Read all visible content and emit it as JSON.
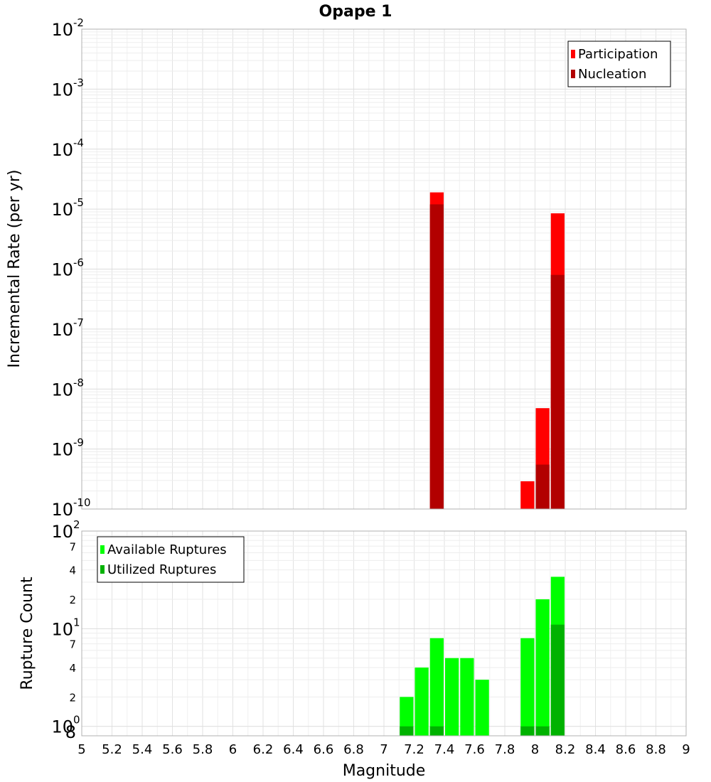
{
  "title": "Opape 1",
  "chart_data": [
    {
      "type": "bar",
      "panel": "top",
      "ylabel": "Incremental Rate (per yr)",
      "yscale": "log",
      "ylim": [
        1e-10,
        0.01
      ],
      "xlim": [
        5,
        9
      ],
      "y_ticks": [
        {
          "base": "10",
          "exp": "-2",
          "value": 0.01
        },
        {
          "base": "10",
          "exp": "-3",
          "value": 0.001
        },
        {
          "base": "10",
          "exp": "-4",
          "value": 0.0001
        },
        {
          "base": "10",
          "exp": "-5",
          "value": 1e-05
        },
        {
          "base": "10",
          "exp": "-6",
          "value": 1e-06
        },
        {
          "base": "10",
          "exp": "-7",
          "value": 1e-07
        },
        {
          "base": "10",
          "exp": "-8",
          "value": 1e-08
        },
        {
          "base": "10",
          "exp": "-9",
          "value": 1e-09
        },
        {
          "base": "10",
          "exp": "-10",
          "value": 1e-10
        }
      ],
      "legend_position": "top-right",
      "series": [
        {
          "name": "Participation",
          "color": "#ff0000",
          "points": [
            {
              "x": 7.35,
              "y": 1.9e-05
            },
            {
              "x": 7.95,
              "y": 2.9e-10
            },
            {
              "x": 8.05,
              "y": 4.8e-09
            },
            {
              "x": 8.15,
              "y": 8.5e-06
            }
          ]
        },
        {
          "name": "Nucleation",
          "color": "#b20000",
          "points": [
            {
              "x": 7.35,
              "y": 1.2e-05
            },
            {
              "x": 8.05,
              "y": 5.5e-10
            },
            {
              "x": 8.15,
              "y": 8e-07
            }
          ]
        }
      ]
    },
    {
      "type": "bar",
      "panel": "bottom",
      "ylabel": "Rupture Count",
      "xlabel": "Magnitude",
      "yscale": "log",
      "ylim": [
        0.8,
        100
      ],
      "xlim": [
        5,
        9
      ],
      "x_ticks": [
        "5",
        "5.2",
        "5.4",
        "5.6",
        "5.8",
        "6",
        "6.2",
        "6.4",
        "6.6",
        "6.8",
        "7",
        "7.2",
        "7.4",
        "7.6",
        "7.8",
        "8",
        "8.2",
        "8.4",
        "8.6",
        "8.8",
        "9"
      ],
      "y_major_ticks": [
        {
          "base": "10",
          "exp": "2",
          "value": 100
        },
        {
          "base": "10",
          "exp": "1",
          "value": 10
        },
        {
          "base": "10",
          "exp": "0",
          "value": 1
        }
      ],
      "y_minor_ticks": [
        {
          "label": "7",
          "value": 70
        },
        {
          "label": "4",
          "value": 40
        },
        {
          "label": "2",
          "value": 20
        },
        {
          "label": "7",
          "value": 7
        },
        {
          "label": "4",
          "value": 4
        },
        {
          "label": "2",
          "value": 2
        },
        {
          "label": "8",
          "value": 0.8
        }
      ],
      "legend_position": "top-left",
      "series": [
        {
          "name": "Available Ruptures",
          "color": "#00ff00",
          "points": [
            {
              "x": 7.15,
              "y": 2
            },
            {
              "x": 7.25,
              "y": 4
            },
            {
              "x": 7.35,
              "y": 8
            },
            {
              "x": 7.45,
              "y": 5
            },
            {
              "x": 7.55,
              "y": 5
            },
            {
              "x": 7.65,
              "y": 3
            },
            {
              "x": 7.95,
              "y": 8
            },
            {
              "x": 8.05,
              "y": 20
            },
            {
              "x": 8.15,
              "y": 34
            }
          ]
        },
        {
          "name": "Utilized Ruptures",
          "color": "#00b200",
          "points": [
            {
              "x": 7.15,
              "y": 1
            },
            {
              "x": 7.35,
              "y": 1
            },
            {
              "x": 7.95,
              "y": 1
            },
            {
              "x": 8.05,
              "y": 1
            },
            {
              "x": 8.15,
              "y": 11
            }
          ]
        }
      ]
    }
  ]
}
